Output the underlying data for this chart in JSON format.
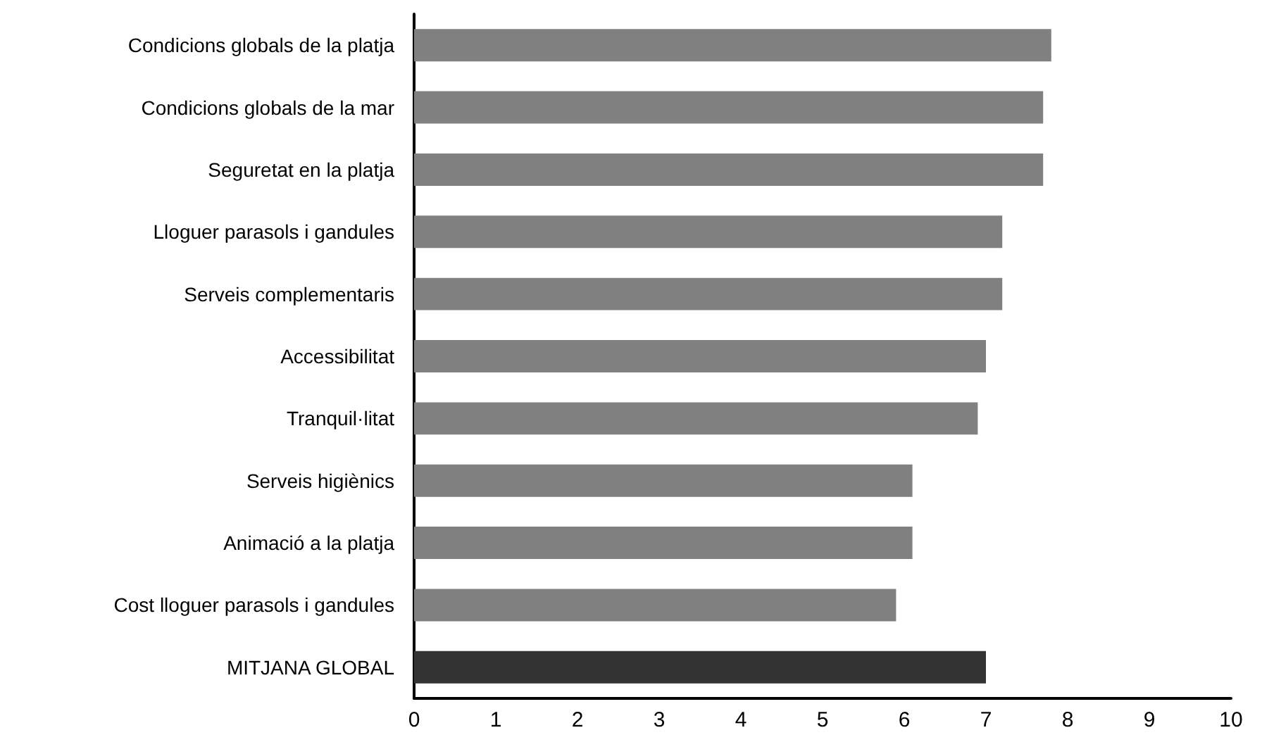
{
  "chart_data": {
    "type": "bar",
    "orientation": "horizontal",
    "categories": [
      "Condicions globals de la platja",
      "Condicions globals de la mar",
      "Seguretat en la platja",
      "Lloguer parasols i gandules",
      "Serveis complementaris",
      "Accessibilitat",
      "Tranquil·litat",
      "Serveis higiènics",
      "Animació a la platja",
      "Cost lloguer parasols i gandules",
      "MITJANA GLOBAL"
    ],
    "values": [
      7.8,
      7.7,
      7.7,
      7.2,
      7.2,
      7.0,
      6.9,
      6.1,
      6.1,
      5.9,
      7.0
    ],
    "colors": [
      "#808080",
      "#808080",
      "#808080",
      "#808080",
      "#808080",
      "#808080",
      "#808080",
      "#808080",
      "#808080",
      "#808080",
      "#333333"
    ],
    "xlim": [
      0,
      10
    ],
    "xticks": [
      0,
      1,
      2,
      3,
      4,
      5,
      6,
      7,
      8,
      9,
      10
    ]
  }
}
